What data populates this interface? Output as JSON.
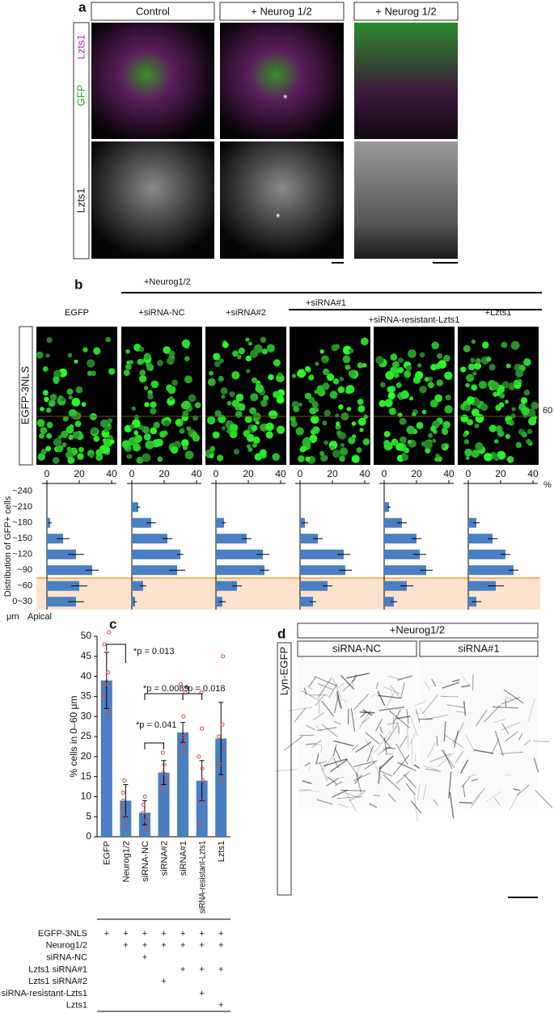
{
  "figure": {
    "panel_a": {
      "label": "a",
      "headers": [
        "Control",
        "+ Neurog 1/2",
        "+ Neurog 1/2"
      ],
      "row_label_top": [
        "Lzts1",
        "GFP"
      ],
      "row_label_bottom": "Lzts1",
      "asterisk": "*"
    },
    "panel_b": {
      "label": "b",
      "group1": "+Neurog1/2",
      "group2": "+siRNA#1",
      "columns": [
        "EGFP",
        "+siRNA-NC",
        "+siRNA#2",
        null,
        "+siRNA-resistant-Lzts1",
        "+Lzts1"
      ],
      "row_label": "EGFP-3NLS",
      "scale": "60",
      "unit": "%",
      "ylabel": "Distribution of GFP+ cells",
      "um": "μm",
      "apical": "Apical"
    },
    "panel_c": {
      "label": "c",
      "table": [
        {
          "label": "EGFP-3NLS",
          "marks": [
            "+",
            "+",
            "+",
            "+",
            "+",
            "+",
            "+"
          ]
        },
        {
          "label": "Neurog1/2",
          "marks": [
            null,
            "+",
            "+",
            "+",
            "+",
            "+",
            "+"
          ]
        },
        {
          "label": "siRNA-NC",
          "marks": [
            null,
            null,
            "+",
            null,
            null,
            null,
            null
          ]
        },
        {
          "label": "Lzts1 siRNA#1",
          "marks": [
            null,
            null,
            null,
            null,
            "+",
            "+",
            "+"
          ]
        },
        {
          "label": "Lzts1 siRNA#2",
          "marks": [
            null,
            null,
            null,
            "+",
            null,
            null,
            null
          ]
        },
        {
          "label": "siRNA-resistant-Lzts1",
          "marks": [
            null,
            null,
            null,
            null,
            null,
            "+",
            null
          ]
        },
        {
          "label": "Lzts1",
          "marks": [
            null,
            null,
            null,
            null,
            null,
            null,
            "+"
          ]
        }
      ]
    },
    "panel_d": {
      "label": "d",
      "group": "+Neurog1/2",
      "columns": [
        "siRNA-NC",
        "siRNA#1"
      ],
      "row_label": "Lyn-EGFP"
    }
  },
  "chart_data": [
    {
      "type": "hbar",
      "categories": [
        "~240",
        "~210",
        "~180",
        "~150",
        "~120",
        "~90",
        "~60",
        "0~30"
      ],
      "xlim": [
        0,
        40
      ],
      "xticks": [
        0,
        20,
        40
      ],
      "color": "#4a7fc1",
      "values": [
        0,
        0,
        2,
        10,
        18,
        28,
        20,
        18
      ],
      "errors": [
        0,
        0,
        1,
        4,
        5,
        4,
        5,
        5
      ]
    },
    {
      "type": "hbar",
      "xlim": [
        0,
        40
      ],
      "xticks": [
        0,
        20,
        40
      ],
      "color": "#4a7fc1",
      "values": [
        0,
        4,
        12,
        22,
        30,
        28,
        7,
        2
      ],
      "errors": [
        0,
        1,
        3,
        3,
        2,
        5,
        2,
        1
      ]
    },
    {
      "type": "hbar",
      "xlim": [
        0,
        40
      ],
      "xticks": [
        0,
        20,
        40
      ],
      "color": "#4a7fc1",
      "values": [
        0,
        0,
        5,
        19,
        29,
        30,
        13,
        4
      ],
      "errors": [
        0,
        0,
        1,
        3,
        4,
        3,
        3,
        2
      ]
    },
    {
      "type": "hbar",
      "xlim": [
        0,
        40
      ],
      "xticks": [
        0,
        20,
        40
      ],
      "color": "#4a7fc1",
      "values": [
        0,
        0,
        3,
        11,
        27,
        28,
        17,
        8
      ],
      "errors": [
        0,
        0,
        2,
        3,
        4,
        4,
        3,
        2
      ]
    },
    {
      "type": "hbar",
      "xlim": [
        0,
        40
      ],
      "xticks": [
        0,
        20,
        40
      ],
      "color": "#4a7fc1",
      "values": [
        0,
        3,
        11,
        20,
        22,
        26,
        14,
        6
      ],
      "errors": [
        0,
        1,
        3,
        3,
        4,
        4,
        4,
        2
      ]
    },
    {
      "type": "hbar",
      "xlim": [
        0,
        40
      ],
      "xticks": [
        0,
        20,
        40
      ],
      "color": "#4a7fc1",
      "values": [
        0,
        0,
        5,
        15,
        23,
        28,
        17,
        5
      ],
      "errors": [
        0,
        0,
        2,
        3,
        3,
        3,
        5,
        3
      ]
    },
    {
      "type": "bar",
      "ylabel": "% cells in 0–60 μm",
      "categories": [
        "EGFP",
        "Neurog1/2",
        "siRNA-NC",
        "siRNA#2",
        "siRNA#1",
        "siRNA-resistant-Lzts1",
        "Lzts1"
      ],
      "values": [
        39,
        9,
        6,
        16,
        26,
        14,
        24.5
      ],
      "errors": [
        7,
        4,
        3,
        3,
        2.5,
        5,
        9
      ],
      "points": [
        [
          51,
          48,
          41,
          38,
          35,
          31
        ],
        [
          14,
          11,
          9,
          7,
          5,
          3
        ],
        [
          10,
          8,
          6,
          4,
          2
        ],
        [
          21,
          18,
          16,
          14,
          12
        ],
        [
          38,
          36,
          30,
          25,
          23,
          21
        ],
        [
          36,
          27,
          20,
          17,
          14,
          9,
          3
        ],
        [
          45,
          28,
          25,
          22,
          18,
          14
        ]
      ],
      "ylim": [
        0,
        50
      ],
      "yticks": [
        0,
        5,
        10,
        15,
        20,
        25,
        30,
        35,
        40,
        45,
        50
      ],
      "color": "#4a7fc1",
      "point_color": "#e8453c",
      "annotations": [
        "*p = 0.013",
        "*p = 0.0089",
        "*p = 0.041",
        "*p = 0.018"
      ]
    }
  ]
}
